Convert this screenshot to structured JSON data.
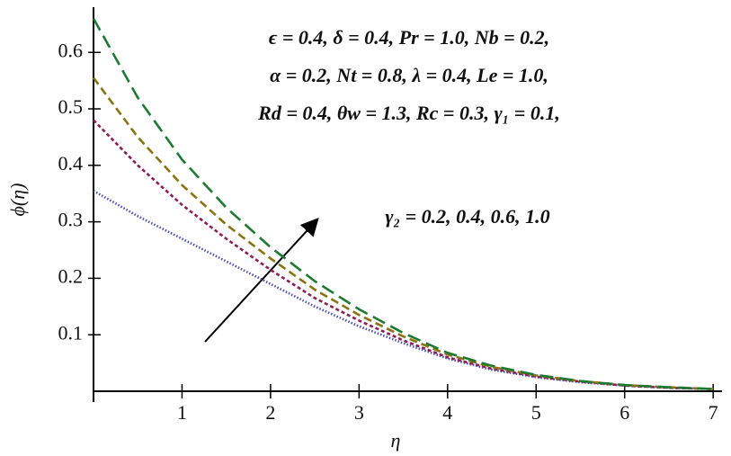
{
  "chart_data": {
    "type": "line",
    "x": [
      0,
      0.5,
      1,
      1.5,
      2,
      2.5,
      3,
      3.5,
      4,
      4.5,
      5,
      5.5,
      6,
      6.5,
      7
    ],
    "series": [
      {
        "color": "#4a4fb0",
        "dash": "dotted",
        "values": [
          0.355,
          0.31,
          0.27,
          0.23,
          0.19,
          0.15,
          0.115,
          0.085,
          0.058,
          0.038,
          0.025,
          0.016,
          0.01,
          0.006,
          0.004
        ]
      },
      {
        "color": "#8b1f55",
        "dash": "short",
        "values": [
          0.48,
          0.4,
          0.33,
          0.27,
          0.215,
          0.165,
          0.125,
          0.09,
          0.06,
          0.04,
          0.026,
          0.017,
          0.01,
          0.006,
          0.004
        ]
      },
      {
        "color": "#8a7312",
        "dash": "medium",
        "values": [
          0.555,
          0.45,
          0.365,
          0.295,
          0.235,
          0.18,
          0.135,
          0.097,
          0.065,
          0.043,
          0.028,
          0.018,
          0.011,
          0.007,
          0.004
        ]
      },
      {
        "color": "#1e7a32",
        "dash": "long",
        "values": [
          0.66,
          0.52,
          0.41,
          0.325,
          0.255,
          0.195,
          0.145,
          0.103,
          0.068,
          0.045,
          0.029,
          0.018,
          0.011,
          0.007,
          0.004
        ]
      }
    ],
    "xlim": [
      0,
      7.1
    ],
    "ylim": [
      0,
      0.68
    ],
    "xticks": [
      1,
      2,
      3,
      4,
      5,
      6,
      7
    ],
    "yticks": [
      0.1,
      0.2,
      0.3,
      0.4,
      0.5,
      0.6
    ],
    "x_label": "η",
    "y_label": "ϕ(η)",
    "annotations": [
      "ϵ = 0.4,  δ = 0.4,  Pr = 1.0,  Nb = 0.2,",
      "α = 0.2,  Nt = 0.8,  λ = 0.4,  Le = 1.0,",
      "Rd = 0.4,  θw = 1.3,  Rc = 0.3,  γ₁ = 0.1,",
      "γ₂ = 0.2, 0.4, 0.6, 1.0"
    ]
  }
}
